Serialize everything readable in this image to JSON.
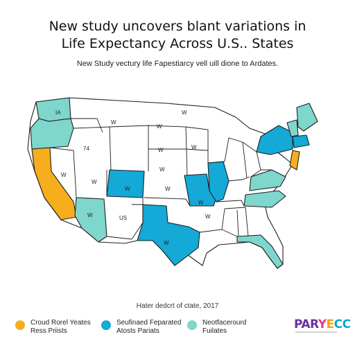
{
  "headline": {
    "line1": "New study uncovers blant variations in",
    "line2": "Life Expectancy Across U.S.. States"
  },
  "subhead": "New Study vectury life Fapestiarcy vell uill dione to Ardates.",
  "map": {
    "colors": {
      "orange": "#f7ae1c",
      "blue": "#14a9d6",
      "teal": "#7ed6cc",
      "white": "#ffffff",
      "outline": "#1d1d1d"
    },
    "state_labels": [
      "IA",
      "74",
      "W",
      "W",
      "W",
      "W",
      "W",
      "W",
      "W",
      "W",
      "W",
      "W",
      "W",
      "US",
      "W",
      "W",
      "W"
    ]
  },
  "footnote": "Hater dedcrt of ctate, 2017",
  "legend": [
    {
      "line1": "Croud Rorel Yeates",
      "line2": "Ress Priists",
      "color": "#f7ae1c"
    },
    {
      "line1": "Seufinaed Feparated",
      "line2": "Atosts Pariats",
      "color": "#14a9d6"
    },
    {
      "line1": "Neotfacerourd",
      "line2": "Fuilates",
      "color": "#7ed6cc"
    }
  ],
  "brand": {
    "part1": "PAR",
    "part2": "Y",
    "part3": "E",
    "part4": "CC"
  }
}
